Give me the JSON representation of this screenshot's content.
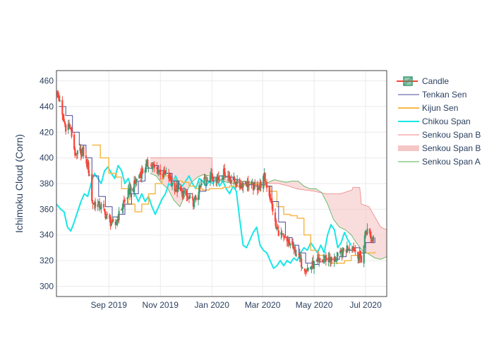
{
  "chart_data": {
    "type": "candlestick",
    "title": "",
    "xlabel": "",
    "ylabel": "Ichimoku Cloud (Corn)",
    "xlim": [
      "2019-07-01",
      "2020-07-26"
    ],
    "ylim": [
      292,
      468
    ],
    "x_ticks": [
      {
        "date": "2019-09-01",
        "label": "Sep 2019"
      },
      {
        "date": "2019-11-01",
        "label": "Nov 2019"
      },
      {
        "date": "2020-01-01",
        "label": "Jan 2020"
      },
      {
        "date": "2020-03-01",
        "label": "Mar 2020"
      },
      {
        "date": "2020-05-01",
        "label": "May 2020"
      },
      {
        "date": "2020-07-01",
        "label": "Jul 2020"
      }
    ],
    "y_ticks": [
      300,
      320,
      340,
      360,
      380,
      400,
      420,
      440,
      460
    ],
    "grid": true,
    "legend_position": "top-right",
    "colors": {
      "increasing": "#3d9970",
      "decreasing": "#ff4136",
      "tenkan": "#4a4a9a",
      "kijun": "#f7b84b",
      "chikou": "#19e6e6",
      "span_b": "#f08080",
      "span_a": "#4caf50",
      "cloud": "#f5c6c6"
    },
    "legend": [
      {
        "key": "candle",
        "label": "Candle"
      },
      {
        "key": "tenkan",
        "label": "Tenkan Sen"
      },
      {
        "key": "kijun",
        "label": "Kijun Sen"
      },
      {
        "key": "chikou",
        "label": "Chikou Span"
      },
      {
        "key": "span_b_line",
        "label": "Senkou Span B"
      },
      {
        "key": "span_b_fill",
        "label": "Senkou Span B"
      },
      {
        "key": "span_a",
        "label": "Senkou Span A"
      }
    ],
    "close_anchors": [
      [
        "2019-07-01",
        450
      ],
      [
        "2019-07-04",
        446
      ],
      [
        "2019-07-08",
        432
      ],
      [
        "2019-07-12",
        424
      ],
      [
        "2019-07-16",
        426
      ],
      [
        "2019-07-20",
        415
      ],
      [
        "2019-07-24",
        400
      ],
      [
        "2019-07-28",
        406
      ],
      [
        "2019-08-01",
        405
      ],
      [
        "2019-08-05",
        398
      ],
      [
        "2019-08-09",
        388
      ],
      [
        "2019-08-12",
        366
      ],
      [
        "2019-08-18",
        363
      ],
      [
        "2019-08-24",
        362
      ],
      [
        "2019-08-28",
        356
      ],
      [
        "2019-09-03",
        350
      ],
      [
        "2019-09-08",
        346
      ],
      [
        "2019-09-12",
        354
      ],
      [
        "2019-09-18",
        364
      ],
      [
        "2019-09-24",
        372
      ],
      [
        "2019-09-30",
        377
      ],
      [
        "2019-10-06",
        386
      ],
      [
        "2019-10-12",
        390
      ],
      [
        "2019-10-18",
        396
      ],
      [
        "2019-10-24",
        392
      ],
      [
        "2019-10-30",
        390
      ],
      [
        "2019-11-05",
        387
      ],
      [
        "2019-11-11",
        385
      ],
      [
        "2019-11-17",
        378
      ],
      [
        "2019-11-23",
        374
      ],
      [
        "2019-11-29",
        372
      ],
      [
        "2019-12-05",
        368
      ],
      [
        "2019-12-11",
        365
      ],
      [
        "2019-12-17",
        375
      ],
      [
        "2019-12-23",
        383
      ],
      [
        "2019-12-29",
        386
      ],
      [
        "2020-01-04",
        385
      ],
      [
        "2020-01-10",
        384
      ],
      [
        "2020-01-16",
        389
      ],
      [
        "2020-01-22",
        384
      ],
      [
        "2020-01-28",
        382
      ],
      [
        "2020-02-03",
        378
      ],
      [
        "2020-02-09",
        381
      ],
      [
        "2020-02-15",
        379
      ],
      [
        "2020-02-21",
        377
      ],
      [
        "2020-02-27",
        378
      ],
      [
        "2020-03-03",
        385
      ],
      [
        "2020-03-09",
        372
      ],
      [
        "2020-03-13",
        360
      ],
      [
        "2020-03-17",
        345
      ],
      [
        "2020-03-23",
        340
      ],
      [
        "2020-03-29",
        334
      ],
      [
        "2020-04-04",
        332
      ],
      [
        "2020-04-10",
        326
      ],
      [
        "2020-04-16",
        318
      ],
      [
        "2020-04-22",
        313
      ],
      [
        "2020-04-28",
        316
      ],
      [
        "2020-05-04",
        318
      ],
      [
        "2020-05-10",
        320
      ],
      [
        "2020-05-16",
        322
      ],
      [
        "2020-05-22",
        320
      ],
      [
        "2020-05-28",
        322
      ],
      [
        "2020-06-03",
        326
      ],
      [
        "2020-06-09",
        330
      ],
      [
        "2020-06-15",
        332
      ],
      [
        "2020-06-21",
        326
      ],
      [
        "2020-06-27",
        320
      ],
      [
        "2020-07-01",
        344
      ],
      [
        "2020-07-05",
        342
      ],
      [
        "2020-07-09",
        336
      ],
      [
        "2020-07-12",
        346
      ]
    ],
    "tenkan_sen": [
      [
        "2019-07-04",
        440
      ],
      [
        "2019-07-12",
        433
      ],
      [
        "2019-07-20",
        420
      ],
      [
        "2019-07-28",
        410
      ],
      [
        "2019-08-05",
        400
      ],
      [
        "2019-08-12",
        386
      ],
      [
        "2019-08-20",
        370
      ],
      [
        "2019-08-28",
        362
      ],
      [
        "2019-09-05",
        354
      ],
      [
        "2019-09-12",
        356
      ],
      [
        "2019-09-20",
        364
      ],
      [
        "2019-09-28",
        372
      ],
      [
        "2019-10-06",
        382
      ],
      [
        "2019-10-14",
        392
      ],
      [
        "2019-10-22",
        394
      ],
      [
        "2019-10-30",
        390
      ],
      [
        "2019-11-07",
        388
      ],
      [
        "2019-11-15",
        382
      ],
      [
        "2019-11-23",
        376
      ],
      [
        "2019-12-01",
        372
      ],
      [
        "2019-12-09",
        368
      ],
      [
        "2019-12-17",
        374
      ],
      [
        "2019-12-25",
        382
      ],
      [
        "2020-01-02",
        385
      ],
      [
        "2020-01-10",
        386
      ],
      [
        "2020-01-18",
        385
      ],
      [
        "2020-01-26",
        383
      ],
      [
        "2020-02-03",
        380
      ],
      [
        "2020-02-11",
        379
      ],
      [
        "2020-02-19",
        378
      ],
      [
        "2020-02-27",
        379
      ],
      [
        "2020-03-06",
        378
      ],
      [
        "2020-03-12",
        366
      ],
      [
        "2020-03-20",
        350
      ],
      [
        "2020-03-28",
        338
      ],
      [
        "2020-04-05",
        332
      ],
      [
        "2020-04-13",
        326
      ],
      [
        "2020-04-21",
        318
      ],
      [
        "2020-04-29",
        317
      ],
      [
        "2020-05-07",
        319
      ],
      [
        "2020-05-15",
        321
      ],
      [
        "2020-05-23",
        321
      ],
      [
        "2020-05-31",
        323
      ],
      [
        "2020-06-08",
        328
      ],
      [
        "2020-06-16",
        330
      ],
      [
        "2020-06-24",
        326
      ],
      [
        "2020-07-01",
        334
      ],
      [
        "2020-07-12",
        338
      ]
    ],
    "kijun_sen": [
      [
        "2019-08-12",
        410
      ],
      [
        "2019-08-22",
        400
      ],
      [
        "2019-09-01",
        388
      ],
      [
        "2019-09-10",
        385
      ],
      [
        "2019-09-16",
        376
      ],
      [
        "2019-09-24",
        364
      ],
      [
        "2019-10-02",
        358
      ],
      [
        "2019-10-10",
        364
      ],
      [
        "2019-10-18",
        372
      ],
      [
        "2019-10-26",
        380
      ],
      [
        "2019-11-03",
        386
      ],
      [
        "2019-11-11",
        384
      ],
      [
        "2019-11-19",
        382
      ],
      [
        "2019-11-27",
        381
      ],
      [
        "2019-12-05",
        378
      ],
      [
        "2019-12-13",
        376
      ],
      [
        "2019-12-21",
        375
      ],
      [
        "2019-12-29",
        376
      ],
      [
        "2020-01-06",
        376
      ],
      [
        "2020-01-14",
        377
      ],
      [
        "2020-01-22",
        378
      ],
      [
        "2020-01-30",
        378
      ],
      [
        "2020-02-07",
        379
      ],
      [
        "2020-02-15",
        380
      ],
      [
        "2020-02-23",
        379
      ],
      [
        "2020-03-02",
        378
      ],
      [
        "2020-03-10",
        374
      ],
      [
        "2020-03-18",
        362
      ],
      [
        "2020-03-26",
        356
      ],
      [
        "2020-04-03",
        355
      ],
      [
        "2020-04-11",
        353
      ],
      [
        "2020-04-19",
        340
      ],
      [
        "2020-04-27",
        328
      ],
      [
        "2020-05-05",
        324
      ],
      [
        "2020-05-13",
        322
      ],
      [
        "2020-05-21",
        318
      ],
      [
        "2020-05-29",
        318
      ],
      [
        "2020-06-06",
        320
      ],
      [
        "2020-06-14",
        324
      ],
      [
        "2020-06-22",
        326
      ],
      [
        "2020-06-30",
        326
      ],
      [
        "2020-07-12",
        327
      ]
    ],
    "chikou_span": [
      [
        "2019-07-01",
        364
      ],
      [
        "2019-07-06",
        360
      ],
      [
        "2019-07-10",
        358
      ],
      [
        "2019-07-14",
        346
      ],
      [
        "2019-07-18",
        343
      ],
      [
        "2019-07-22",
        350
      ],
      [
        "2019-07-26",
        358
      ],
      [
        "2019-07-30",
        366
      ],
      [
        "2019-08-03",
        372
      ],
      [
        "2019-08-07",
        370
      ],
      [
        "2019-08-11",
        380
      ],
      [
        "2019-08-15",
        388
      ],
      [
        "2019-08-19",
        384
      ],
      [
        "2019-08-23",
        380
      ],
      [
        "2019-08-27",
        390
      ],
      [
        "2019-08-31",
        393
      ],
      [
        "2019-09-04",
        388
      ],
      [
        "2019-09-08",
        384
      ],
      [
        "2019-09-12",
        394
      ],
      [
        "2019-09-16",
        390
      ],
      [
        "2019-09-20",
        380
      ],
      [
        "2019-09-24",
        384
      ],
      [
        "2019-09-28",
        376
      ],
      [
        "2019-10-02",
        372
      ],
      [
        "2019-10-06",
        366
      ],
      [
        "2019-10-10",
        372
      ],
      [
        "2019-10-14",
        366
      ],
      [
        "2019-10-18",
        370
      ],
      [
        "2019-10-22",
        362
      ],
      [
        "2019-10-26",
        356
      ],
      [
        "2019-10-30",
        362
      ],
      [
        "2019-11-03",
        368
      ],
      [
        "2019-11-07",
        372
      ],
      [
        "2019-11-11",
        380
      ],
      [
        "2019-11-15",
        378
      ],
      [
        "2019-11-19",
        386
      ],
      [
        "2019-11-23",
        380
      ],
      [
        "2019-11-27",
        378
      ],
      [
        "2019-12-01",
        382
      ],
      [
        "2019-12-05",
        386
      ],
      [
        "2019-12-09",
        380
      ],
      [
        "2019-12-13",
        376
      ],
      [
        "2019-12-17",
        384
      ],
      [
        "2019-12-21",
        382
      ],
      [
        "2019-12-25",
        378
      ],
      [
        "2019-12-29",
        382
      ],
      [
        "2020-01-02",
        380
      ],
      [
        "2020-01-06",
        384
      ],
      [
        "2020-01-10",
        378
      ],
      [
        "2020-01-14",
        382
      ],
      [
        "2020-01-18",
        376
      ],
      [
        "2020-01-22",
        372
      ],
      [
        "2020-01-26",
        378
      ],
      [
        "2020-01-30",
        374
      ],
      [
        "2020-02-03",
        352
      ],
      [
        "2020-02-07",
        332
      ],
      [
        "2020-02-11",
        330
      ],
      [
        "2020-02-15",
        336
      ],
      [
        "2020-02-19",
        342
      ],
      [
        "2020-02-23",
        346
      ],
      [
        "2020-02-27",
        332
      ],
      [
        "2020-03-02",
        328
      ],
      [
        "2020-03-06",
        326
      ],
      [
        "2020-03-10",
        320
      ],
      [
        "2020-03-14",
        314
      ],
      [
        "2020-03-18",
        316
      ],
      [
        "2020-03-22",
        320
      ],
      [
        "2020-03-26",
        316
      ],
      [
        "2020-03-30",
        320
      ],
      [
        "2020-04-03",
        318
      ],
      [
        "2020-04-07",
        322
      ],
      [
        "2020-04-11",
        320
      ],
      [
        "2020-04-15",
        326
      ],
      [
        "2020-04-19",
        330
      ],
      [
        "2020-04-23",
        328
      ],
      [
        "2020-04-27",
        334
      ],
      [
        "2020-05-01",
        330
      ],
      [
        "2020-05-05",
        326
      ],
      [
        "2020-05-09",
        332
      ],
      [
        "2020-05-13",
        326
      ],
      [
        "2020-05-17",
        340
      ],
      [
        "2020-05-21",
        348
      ],
      [
        "2020-05-25",
        344
      ],
      [
        "2020-05-29",
        330
      ],
      [
        "2020-06-02",
        334
      ],
      [
        "2020-06-06",
        342
      ],
      [
        "2020-06-10",
        336
      ],
      [
        "2020-06-14",
        332
      ]
    ],
    "senkou_span_a": [
      [
        "2019-10-20",
        388
      ],
      [
        "2019-10-27",
        386
      ],
      [
        "2019-11-03",
        380
      ],
      [
        "2019-11-10",
        376
      ],
      [
        "2019-11-17",
        367
      ],
      [
        "2019-11-24",
        362
      ],
      [
        "2019-12-01",
        372
      ],
      [
        "2019-12-08",
        381
      ],
      [
        "2019-12-15",
        385
      ],
      [
        "2019-12-22",
        387
      ],
      [
        "2019-12-29",
        386
      ],
      [
        "2020-01-05",
        384
      ],
      [
        "2020-01-12",
        382
      ],
      [
        "2020-01-19",
        381
      ],
      [
        "2020-01-26",
        380
      ],
      [
        "2020-02-02",
        381
      ],
      [
        "2020-02-09",
        382
      ],
      [
        "2020-02-16",
        381
      ],
      [
        "2020-02-23",
        380
      ],
      [
        "2020-03-01",
        380
      ],
      [
        "2020-03-08",
        381
      ],
      [
        "2020-03-15",
        383
      ],
      [
        "2020-03-22",
        382
      ],
      [
        "2020-03-29",
        381
      ],
      [
        "2020-04-05",
        382
      ],
      [
        "2020-04-12",
        382
      ],
      [
        "2020-04-19",
        378
      ],
      [
        "2020-04-26",
        376
      ],
      [
        "2020-05-03",
        376
      ],
      [
        "2020-05-10",
        373
      ],
      [
        "2020-05-17",
        364
      ],
      [
        "2020-05-24",
        352
      ],
      [
        "2020-05-31",
        346
      ],
      [
        "2020-06-07",
        344
      ],
      [
        "2020-06-14",
        340
      ],
      [
        "2020-06-21",
        333
      ],
      [
        "2020-06-28",
        327
      ],
      [
        "2020-07-05",
        325
      ],
      [
        "2020-07-12",
        322
      ],
      [
        "2020-07-19",
        321
      ],
      [
        "2020-07-26",
        323
      ]
    ],
    "senkou_span_b": [
      [
        "2019-10-20",
        400
      ],
      [
        "2019-11-15",
        400
      ],
      [
        "2019-12-15",
        400
      ],
      [
        "2020-01-01",
        400
      ],
      [
        "2020-01-02",
        384
      ],
      [
        "2020-01-15",
        383
      ],
      [
        "2020-02-01",
        382
      ],
      [
        "2020-02-15",
        381
      ],
      [
        "2020-03-01",
        381
      ],
      [
        "2020-03-10",
        380
      ],
      [
        "2020-03-20",
        380
      ],
      [
        "2020-04-01",
        378
      ],
      [
        "2020-04-10",
        376
      ],
      [
        "2020-04-20",
        375
      ],
      [
        "2020-05-01",
        374
      ],
      [
        "2020-05-15",
        372
      ],
      [
        "2020-06-01",
        372
      ],
      [
        "2020-06-15",
        375
      ],
      [
        "2020-06-16",
        377
      ],
      [
        "2020-06-24",
        377
      ],
      [
        "2020-06-26",
        364
      ],
      [
        "2020-07-05",
        362
      ],
      [
        "2020-07-12",
        354
      ],
      [
        "2020-07-19",
        346
      ],
      [
        "2020-07-26",
        344
      ]
    ]
  }
}
